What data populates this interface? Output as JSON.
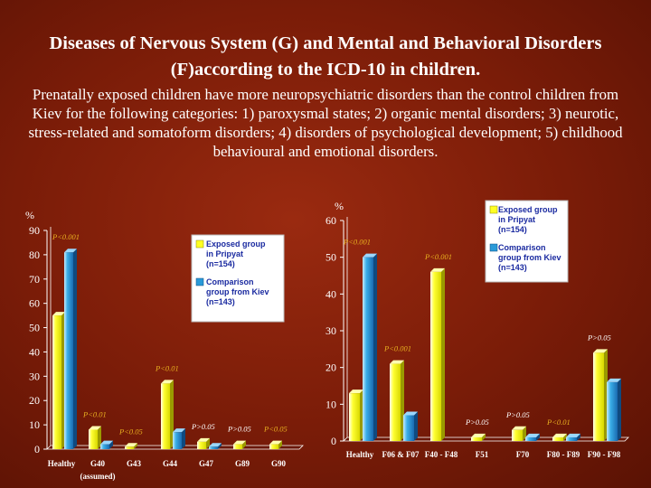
{
  "slide": {
    "title": "Diseases of Nervous System (G) and Mental and Behavioral Disorders (F)according to the ICD-10 in children.",
    "subtitle": "Prenatally exposed children have more neuropsychiatric disorders than the control children from Kiev for the following categories: 1) paroxysmal states; 2) organic mental disorders; 3) neurotic, stress-related and somatoform disorders; 4) disorders of psychological development; 5) childhood behavioural and emotional disorders."
  },
  "colors": {
    "exposed": "#ffff22",
    "comparison": "#2a9ad8",
    "annotation": "#e8b020"
  },
  "chart_data": [
    {
      "type": "bar",
      "unit": "%",
      "ylim": [
        0,
        90
      ],
      "yticks": [
        "0",
        "10",
        "20",
        "30",
        "40",
        "50",
        "60",
        "70",
        "80",
        "90"
      ],
      "categories": [
        "Healthy",
        "G40",
        "G43",
        "G44",
        "G47",
        "G89",
        "G90"
      ],
      "category_note": "(assumed)",
      "series": [
        {
          "name": "Exposed group in Pripyat (n=154)",
          "values": [
            55,
            8,
            1,
            27,
            3,
            2,
            2
          ]
        },
        {
          "name": "Comparison group from Kiev (n=143)",
          "values": [
            81,
            2,
            0,
            7,
            1,
            0,
            0
          ]
        }
      ],
      "annotations": [
        "P<0.001",
        "P<0.01",
        "P<0.05",
        "P<0.01",
        "P>0.05",
        "P>0.05",
        "P<0.05"
      ],
      "legend": {
        "exposed": [
          "Exposed group",
          "in Pripyat",
          "(n=154)"
        ],
        "comparison": [
          "Comparison",
          "group from Kiev",
          "(n=143)"
        ]
      }
    },
    {
      "type": "bar",
      "unit": "%",
      "ylim": [
        0,
        60
      ],
      "yticks": [
        "0",
        "10",
        "20",
        "30",
        "40",
        "50",
        "60"
      ],
      "categories": [
        "Healthy",
        "F06 & F07",
        "F40 - F48",
        "F51",
        "F70",
        "F80 - F89",
        "F90 - F98"
      ],
      "series": [
        {
          "name": "Exposed group in Pripyat (n=154)",
          "values": [
            13,
            21,
            46,
            1,
            3,
            1,
            24
          ]
        },
        {
          "name": "Comparison group from Kiev (n=143)",
          "values": [
            50,
            7,
            0,
            0,
            1,
            1,
            16
          ]
        }
      ],
      "annotations": [
        "P<0.001",
        "P<0.001",
        "P<0.001",
        "P>0.05",
        "P>0.05",
        "P<0.01",
        "P>0.05"
      ],
      "legend": {
        "exposed": [
          "Exposed group",
          "in Pripyat",
          "(n=154)"
        ],
        "comparison": [
          "Comparison",
          "group from Kiev",
          "(n=143)"
        ]
      }
    }
  ]
}
